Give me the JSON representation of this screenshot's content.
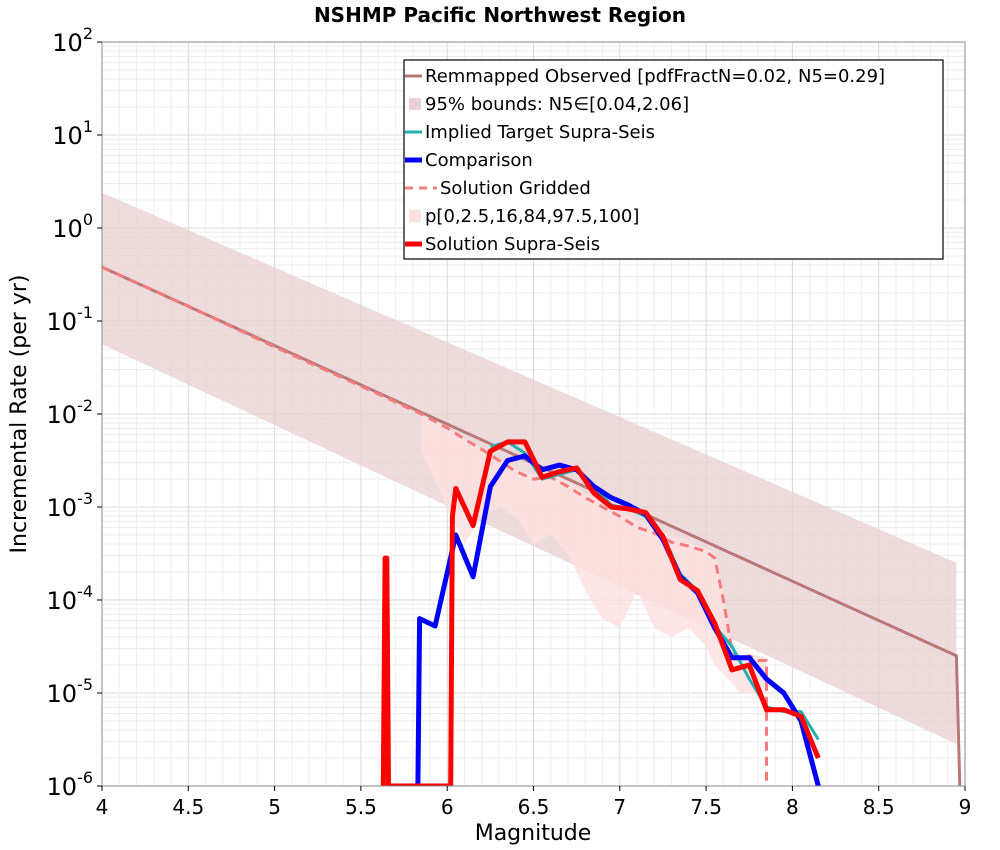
{
  "chart_data": {
    "type": "line",
    "title": "NSHMP Pacific Northwest Region",
    "xlabel": "Magnitude",
    "ylabel": "Incremental Rate (per yr)",
    "xlim": [
      4,
      9
    ],
    "ylim_log10": [
      -6,
      2
    ],
    "x_ticks": [
      4,
      4.5,
      5,
      5.5,
      6,
      6.5,
      7,
      7.5,
      8,
      8.5,
      9
    ],
    "x_tick_labels": [
      "4",
      "4.5",
      "5",
      "5.5",
      "6",
      "6.5",
      "7",
      "7.5",
      "8",
      "8.5",
      "9"
    ],
    "y_tick_exponents": [
      -6,
      -5,
      -4,
      -3,
      -2,
      -1,
      0,
      1,
      2
    ],
    "y_tick_base": "10",
    "grid": true,
    "legend_position": "top-right",
    "colors": {
      "observed": "#b87878",
      "bounds_fill": "#e8d0d2",
      "target": "#20b0b0",
      "comparison": "#0000ff",
      "gridded": "#f47c7c",
      "percentile_fill": "#ffe0e0",
      "supra": "#ff0000"
    },
    "legend": [
      {
        "key": "observed",
        "label": "Remmapped Observed [pdfFractN=0.02, N5=0.29]"
      },
      {
        "key": "bounds",
        "label": "95% bounds: N5∈[0.04,2.06]"
      },
      {
        "key": "target",
        "label": "Implied Target Supra-Seis"
      },
      {
        "key": "comparison",
        "label": "Comparison"
      },
      {
        "key": "gridded",
        "label": "Solution Gridded"
      },
      {
        "key": "percentiles",
        "label": "p[0,2.5,16,84,97.5,100]"
      },
      {
        "key": "supra",
        "label": "Solution Supra-Seis"
      }
    ],
    "series": [
      {
        "name": "Remmapped Observed",
        "x": [
          4.0,
          8.95,
          8.97
        ],
        "log10_y": [
          -0.42,
          -4.6,
          -6.0
        ]
      },
      {
        "name": "95% bounds upper",
        "x": [
          4.0,
          8.95,
          8.95
        ],
        "log10_y": [
          0.38,
          -3.6,
          -4.2
        ]
      },
      {
        "name": "95% bounds lower",
        "x": [
          4.0,
          8.95
        ],
        "log10_y": [
          -1.25,
          -5.55
        ]
      },
      {
        "name": "Implied Target Supra-Seis",
        "x": [
          6.25,
          6.35,
          6.45,
          6.55,
          6.65,
          6.75,
          6.85,
          6.95,
          7.05,
          7.15,
          7.25,
          7.35,
          7.45,
          7.55,
          7.65,
          7.75,
          7.85,
          7.95,
          8.05,
          8.15
        ],
        "log10_y": [
          -2.35,
          -2.3,
          -2.42,
          -2.7,
          -2.65,
          -2.6,
          -2.78,
          -2.98,
          -3.02,
          -3.1,
          -3.3,
          -3.72,
          -3.9,
          -4.28,
          -4.5,
          -4.85,
          -5.15,
          -5.2,
          -5.2,
          -5.5
        ]
      },
      {
        "name": "Comparison",
        "x": [
          5.83,
          5.84,
          5.93,
          6.05,
          6.15,
          6.25,
          6.35,
          6.45,
          6.55,
          6.65,
          6.75,
          6.85,
          6.95,
          7.05,
          7.15,
          7.25,
          7.35,
          7.45,
          7.55,
          7.65,
          7.75,
          7.85,
          7.95,
          8.05,
          8.15
        ],
        "log10_y": [
          -6.0,
          -4.2,
          -4.28,
          -3.3,
          -3.75,
          -2.78,
          -2.5,
          -2.45,
          -2.6,
          -2.55,
          -2.6,
          -2.78,
          -2.9,
          -2.98,
          -3.08,
          -3.35,
          -3.75,
          -3.92,
          -4.3,
          -4.62,
          -4.62,
          -4.85,
          -5.0,
          -5.3,
          -6.0
        ]
      },
      {
        "name": "Solution Gridded",
        "x": [
          4.0,
          4.5,
          5.0,
          5.5,
          5.85,
          6.0,
          6.1,
          6.2,
          6.3,
          6.4,
          6.5,
          6.6,
          6.7,
          6.8,
          6.9,
          7.0,
          7.1,
          7.2,
          7.3,
          7.4,
          7.5,
          7.55,
          7.6,
          7.65,
          7.7,
          7.75,
          7.8,
          7.85,
          7.85
        ],
        "log10_y": [
          -0.42,
          -0.84,
          -1.28,
          -1.7,
          -2.0,
          -2.15,
          -2.27,
          -2.38,
          -2.5,
          -2.62,
          -2.7,
          -2.68,
          -2.78,
          -2.9,
          -3.0,
          -3.1,
          -3.22,
          -3.28,
          -3.38,
          -3.42,
          -3.48,
          -3.55,
          -4.0,
          -4.55,
          -4.65,
          -4.6,
          -4.65,
          -4.65,
          -6.0
        ]
      },
      {
        "name": "Solution Supra-Seis",
        "x": [
          5.63,
          5.64,
          5.65,
          5.66,
          6.02,
          6.03,
          6.05,
          6.15,
          6.25,
          6.35,
          6.45,
          6.55,
          6.65,
          6.75,
          6.85,
          6.95,
          7.05,
          7.15,
          7.25,
          7.35,
          7.45,
          7.55,
          7.65,
          7.75,
          7.85,
          7.95,
          8.05,
          8.15
        ],
        "log10_y": [
          -6.0,
          -3.55,
          -3.55,
          -6.0,
          -6.0,
          -3.1,
          -2.8,
          -3.2,
          -2.4,
          -2.3,
          -2.3,
          -2.68,
          -2.62,
          -2.58,
          -2.85,
          -3.0,
          -3.02,
          -3.06,
          -3.32,
          -3.78,
          -3.9,
          -4.25,
          -4.75,
          -4.7,
          -5.18,
          -5.18,
          -5.25,
          -5.7
        ]
      },
      {
        "name": "p[0,2.5,16,84,97.5,100] upper",
        "x": [
          5.85,
          6.0,
          6.1,
          6.2,
          6.3,
          6.4,
          6.5,
          6.6,
          6.7,
          6.8,
          6.9,
          7.0,
          7.1,
          7.2,
          7.3,
          7.4,
          7.5,
          7.55,
          7.6,
          7.65,
          7.7,
          7.75,
          7.8,
          7.85
        ],
        "log10_y": [
          -2.0,
          -2.15,
          -2.27,
          -2.38,
          -2.5,
          -2.6,
          -2.65,
          -2.6,
          -2.72,
          -2.85,
          -2.95,
          -3.05,
          -3.15,
          -3.22,
          -3.3,
          -3.38,
          -3.45,
          -3.5,
          -3.95,
          -4.5,
          -4.6,
          -4.58,
          -4.6,
          -4.62
        ]
      },
      {
        "name": "p[0,2.5,16,84,97.5,100] lower",
        "x": [
          5.85,
          6.0,
          6.1,
          6.2,
          6.3,
          6.4,
          6.5,
          6.6,
          6.7,
          6.8,
          6.9,
          7.0,
          7.1,
          7.2,
          7.3,
          7.4,
          7.5,
          7.55,
          7.6,
          7.65,
          7.7,
          7.75,
          7.8,
          7.85
        ],
        "log10_y": [
          -2.4,
          -3.0,
          -3.4,
          -3.1,
          -3.0,
          -3.1,
          -3.4,
          -3.3,
          -3.5,
          -3.9,
          -4.2,
          -4.3,
          -3.9,
          -4.3,
          -4.4,
          -4.3,
          -4.5,
          -4.7,
          -4.8,
          -4.9,
          -5.0,
          -5.0,
          -5.0,
          -5.0
        ]
      }
    ]
  }
}
